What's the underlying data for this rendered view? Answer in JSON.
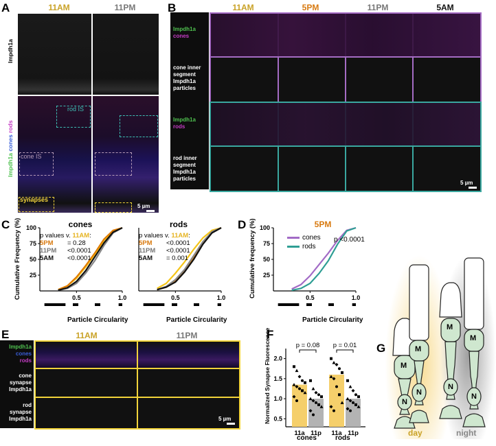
{
  "panels": {
    "A": {
      "label": "A",
      "times": [
        "11AM",
        "11PM"
      ],
      "row1_label": "Impdh1a",
      "row2_label": [
        {
          "text": "Impdh1a",
          "color": "#4fc04f"
        },
        {
          "text": " cones",
          "color": "#3a5fd9"
        },
        {
          "text": " rods",
          "color": "#c43cc4"
        }
      ],
      "boxes": {
        "rod": "rod IS",
        "cone": "cone IS",
        "syn": "synapses"
      },
      "scale": "5 µm"
    },
    "B": {
      "label": "B",
      "times": [
        "11AM",
        "5PM",
        "11PM",
        "5AM"
      ],
      "rows": [
        {
          "l1": "Impdh1a",
          "l2": "cones"
        },
        {
          "l1": "cone inner",
          "l2": "segment",
          "l3": "Impdh1a",
          "l4": "particles"
        },
        {
          "l1": "Impdh1a",
          "l2": "rods"
        },
        {
          "l1": "rod inner",
          "l2": "segment",
          "l3": "Impdh1a",
          "l4": "particles"
        }
      ],
      "scale": "5 µm"
    },
    "C": {
      "label": "C",
      "ylabel": "Cumulative Frequency (%)",
      "xlabel": "Particle Circularity",
      "pv_title": "p values v. ",
      "pv_ref": "11AM",
      "pv_colon": ":",
      "cones": {
        "title": "cones",
        "pvals": [
          {
            "t": "5PM",
            "v": "= 0.28"
          },
          {
            "t": "11PM",
            "v": "<0.0001"
          },
          {
            "t": "5AM",
            "v": "<0.0001"
          }
        ]
      },
      "rods": {
        "title": "rods",
        "pvals": [
          {
            "t": "5PM",
            "v": "<0.0001"
          },
          {
            "t": "11PM",
            "v": "<0.0001"
          },
          {
            "t": "5AM",
            "v": "= 0.001"
          }
        ]
      }
    },
    "D": {
      "label": "D",
      "title": "5PM",
      "ylabel": "Cumulative frequency (%)",
      "xlabel": "Particle Circularity",
      "legend": [
        "cones",
        "rods"
      ],
      "pval": "p <0.0001"
    },
    "E": {
      "label": "E",
      "times": [
        "11AM",
        "11PM"
      ],
      "row1": [
        {
          "text": "Impdh1a",
          "color": "#4fc04f"
        },
        {
          "text": "cones",
          "color": "#3a5fd9"
        },
        {
          "text": "rods",
          "color": "#c43cc4"
        }
      ],
      "row2": [
        "cone",
        "synapse",
        "Impdh1a"
      ],
      "row3": [
        "rod",
        "synapse",
        "Impdh1a"
      ],
      "scale": "5 µm"
    },
    "F": {
      "label": "F",
      "ylabel1": "Normalized Synapse Fluorescence",
      "pvals": [
        "p = 0.08",
        "p = 0.01"
      ],
      "ticks": [
        "11a",
        "11p",
        "11a",
        "11p"
      ],
      "groups": [
        "cones",
        "rods"
      ]
    },
    "G": {
      "label": "G",
      "day": "day",
      "night": "night",
      "m": "M",
      "n": "N"
    }
  },
  "chart_data": [
    {
      "type": "line",
      "title": "cones",
      "xlabel": "Particle Circularity",
      "ylabel": "Cumulative Frequency (%)",
      "xlim": [
        0.1,
        1.0
      ],
      "ylim": [
        0,
        100
      ],
      "xticks": [
        0.5,
        1.0
      ],
      "yticks": [
        25,
        50,
        75,
        100
      ],
      "series": [
        {
          "name": "11AM",
          "color": "#f5c518",
          "x": [
            0.3,
            0.4,
            0.5,
            0.6,
            0.7,
            0.8,
            0.9,
            1.0
          ],
          "y": [
            2,
            8,
            20,
            38,
            58,
            80,
            95,
            100
          ]
        },
        {
          "name": "5PM",
          "color": "#e07b00",
          "x": [
            0.3,
            0.4,
            0.5,
            0.6,
            0.7,
            0.8,
            0.9,
            1.0
          ],
          "y": [
            2,
            8,
            22,
            40,
            60,
            82,
            96,
            100
          ]
        },
        {
          "name": "11PM",
          "color": "#888888",
          "x": [
            0.3,
            0.4,
            0.5,
            0.6,
            0.7,
            0.8,
            0.9,
            1.0
          ],
          "y": [
            1,
            4,
            12,
            28,
            48,
            72,
            92,
            100
          ]
        },
        {
          "name": "5AM",
          "color": "#111111",
          "x": [
            0.3,
            0.4,
            0.5,
            0.6,
            0.7,
            0.8,
            0.9,
            1.0
          ],
          "y": [
            1,
            5,
            15,
            32,
            54,
            76,
            93,
            100
          ]
        }
      ]
    },
    {
      "type": "line",
      "title": "rods",
      "xlabel": "Particle Circularity",
      "xlim": [
        0.1,
        1.0
      ],
      "ylim": [
        0,
        100
      ],
      "xticks": [
        0.5,
        1.0
      ],
      "series": [
        {
          "name": "11AM",
          "color": "#f5c518",
          "x": [
            0.3,
            0.4,
            0.5,
            0.6,
            0.7,
            0.8,
            0.9,
            1.0
          ],
          "y": [
            4,
            12,
            28,
            46,
            66,
            84,
            96,
            100
          ]
        },
        {
          "name": "5PM",
          "color": "#e07b00",
          "x": [
            0.3,
            0.4,
            0.5,
            0.6,
            0.7,
            0.8,
            0.9,
            1.0
          ],
          "y": [
            2,
            6,
            16,
            32,
            52,
            76,
            94,
            100
          ]
        },
        {
          "name": "11PM",
          "color": "#888888",
          "x": [
            0.3,
            0.4,
            0.5,
            0.6,
            0.7,
            0.8,
            0.9,
            1.0
          ],
          "y": [
            2,
            7,
            18,
            34,
            56,
            78,
            94,
            100
          ]
        },
        {
          "name": "5AM",
          "color": "#111111",
          "x": [
            0.3,
            0.4,
            0.5,
            0.6,
            0.7,
            0.8,
            0.9,
            1.0
          ],
          "y": [
            2,
            6,
            14,
            30,
            50,
            74,
            92,
            100
          ]
        }
      ]
    },
    {
      "type": "line",
      "title": "5PM",
      "xlabel": "Particle Circularity",
      "ylabel": "Cumulative frequency (%)",
      "xlim": [
        0.1,
        1.0
      ],
      "ylim": [
        0,
        100
      ],
      "xticks": [
        0.5,
        1.0
      ],
      "yticks": [
        25,
        50,
        75,
        100
      ],
      "series": [
        {
          "name": "cones",
          "color": "#a26bc6",
          "x": [
            0.3,
            0.4,
            0.5,
            0.6,
            0.7,
            0.8,
            0.9,
            1.0
          ],
          "y": [
            3,
            10,
            24,
            42,
            60,
            80,
            96,
            100
          ]
        },
        {
          "name": "rods",
          "color": "#2f9e94",
          "x": [
            0.3,
            0.4,
            0.5,
            0.6,
            0.7,
            0.8,
            0.9,
            1.0
          ],
          "y": [
            1,
            4,
            12,
            28,
            48,
            74,
            95,
            100
          ]
        }
      ]
    },
    {
      "type": "bar",
      "ylabel": "Normalized Synapse Fluorescence",
      "categories": [
        "11a",
        "11p",
        "11a",
        "11p"
      ],
      "groups": [
        "cones",
        "cones",
        "rods",
        "rods"
      ],
      "values": [
        1.35,
        1.0,
        1.6,
        1.0
      ],
      "colors": [
        "#f5cf6b",
        "#b3b3b3",
        "#f5cf6b",
        "#b3b3b3"
      ],
      "ylim": [
        0.3,
        2.25
      ],
      "yticks": [
        0.5,
        1.0,
        1.5,
        2.0
      ],
      "annotations": [
        {
          "between": [
            0,
            1
          ],
          "text": "p = 0.08"
        },
        {
          "between": [
            2,
            3
          ],
          "text": "p = 0.01"
        }
      ],
      "points": [
        [
          1.8,
          1.7,
          1.55,
          1.45,
          1.4,
          1.35,
          1.3,
          1.25,
          1.2,
          1.15,
          1.05,
          0.95
        ],
        [
          1.45,
          1.25,
          1.15,
          1.1,
          1.05,
          1.0,
          0.95,
          0.9,
          0.85,
          0.8,
          0.7,
          0.6
        ],
        [
          2.0,
          1.9,
          1.85,
          1.75,
          1.65,
          1.55,
          1.5,
          1.3,
          1.1,
          0.9,
          0.8,
          0.7
        ],
        [
          1.45,
          1.3,
          1.2,
          1.1,
          1.05,
          1.0,
          0.95,
          0.9,
          0.85,
          0.8,
          0.75,
          0.7
        ]
      ]
    }
  ]
}
